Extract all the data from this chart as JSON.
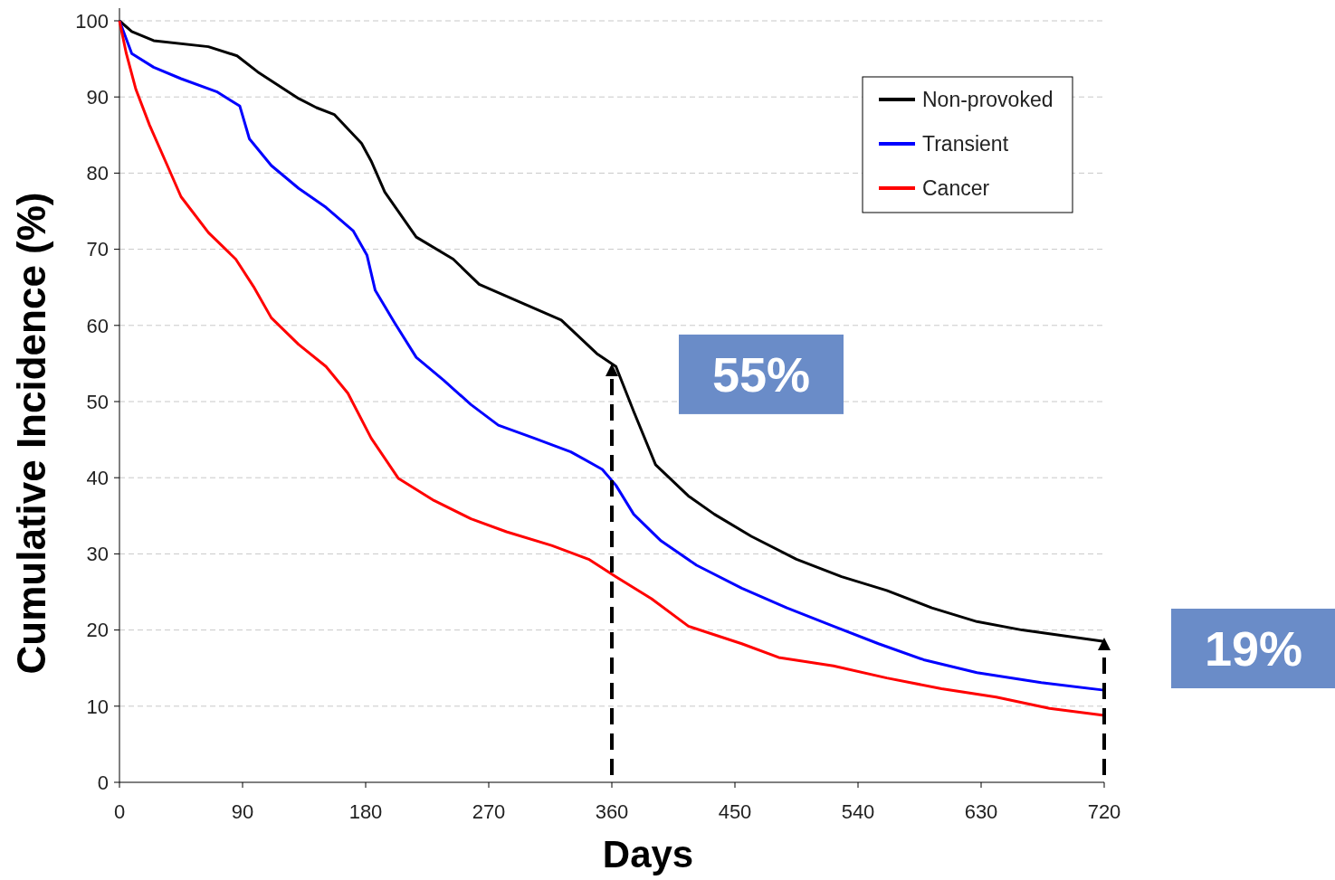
{
  "chart_data": {
    "type": "line",
    "xlabel": "Days",
    "ylabel": "Cumulative Incidence (%)",
    "xlim": [
      0,
      720
    ],
    "xticks": [
      0,
      90,
      180,
      270,
      360,
      450,
      540,
      630,
      720
    ],
    "ylim": [
      0,
      100
    ],
    "yticks": [
      0,
      10,
      20,
      30,
      40,
      50,
      60,
      70,
      80,
      90,
      100
    ],
    "grid": "y",
    "legend": "top right",
    "marker": "none",
    "line_style": "solid",
    "series": [
      {
        "name": "Non-provoked",
        "color": "#000000",
        "x": [
          0,
          9,
          25,
          65,
          86,
          101,
          131,
          144,
          157,
          177,
          184,
          194,
          217,
          244,
          263,
          296,
          323,
          349,
          363,
          376,
          392,
          416,
          435,
          462,
          495,
          528,
          561,
          594,
          627,
          660,
          720
        ],
        "values": [
          100,
          98.6,
          97.4,
          96.6,
          95.4,
          93.3,
          89.8,
          88.6,
          87.7,
          83.9,
          81.6,
          77.5,
          71.6,
          68.7,
          65.4,
          62.8,
          60.7,
          56.3,
          54.6,
          48.7,
          41.7,
          37.6,
          35.2,
          32.3,
          29.3,
          27,
          25.2,
          22.9,
          21.1,
          20,
          18.5
        ]
      },
      {
        "name": "Transient",
        "color": "#0000ff",
        "x": [
          0,
          9,
          25,
          45,
          71,
          88,
          95,
          111,
          131,
          151,
          171,
          181,
          187,
          201,
          217,
          237,
          257,
          277,
          303,
          330,
          353,
          363,
          376,
          396,
          422,
          455,
          488,
          522,
          555,
          588,
          627,
          674,
          720
        ],
        "values": [
          100,
          95.7,
          93.9,
          92.4,
          90.7,
          88.8,
          84.5,
          81,
          78,
          75.5,
          72.4,
          69.2,
          64.6,
          60.4,
          55.8,
          52.8,
          49.6,
          46.9,
          45.2,
          43.4,
          41.1,
          39,
          35.2,
          31.7,
          28.5,
          25.5,
          22.9,
          20.5,
          18.2,
          16.1,
          14.4,
          13.1,
          12.1
        ]
      },
      {
        "name": "Cancer",
        "color": "#ff0000",
        "x": [
          0,
          5,
          12,
          22,
          35,
          45,
          65,
          85,
          98,
          111,
          131,
          151,
          167,
          184,
          204,
          230,
          257,
          283,
          316,
          343,
          363,
          389,
          416,
          455,
          482,
          522,
          561,
          601,
          641,
          680,
          720
        ],
        "values": [
          100,
          95.7,
          91,
          86.3,
          81,
          76.9,
          72.2,
          68.7,
          65.1,
          61,
          57.5,
          54.6,
          51.1,
          45.2,
          39.9,
          37,
          34.6,
          32.9,
          31.1,
          29.3,
          27,
          24.1,
          20.5,
          18.2,
          16.4,
          15.3,
          13.7,
          12.3,
          11.2,
          9.7,
          8.8
        ]
      }
    ],
    "annotations": [
      {
        "text": "55%",
        "x": 360,
        "y": 55
      },
      {
        "text": "19%",
        "x": 720,
        "y": 19
      }
    ]
  }
}
